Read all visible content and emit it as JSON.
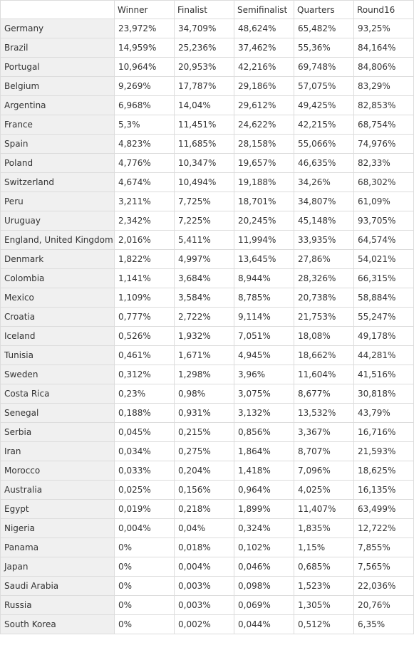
{
  "table": {
    "headers": [
      "Winner",
      "Finalist",
      "Semifinalist",
      "Quarters",
      "Round16"
    ],
    "rows": [
      {
        "team": "Germany",
        "values": [
          "23,972%",
          "34,709%",
          "48,624%",
          "65,482%",
          "93,25%"
        ]
      },
      {
        "team": "Brazil",
        "values": [
          "14,959%",
          "25,236%",
          "37,462%",
          "55,36%",
          "84,164%"
        ]
      },
      {
        "team": "Portugal",
        "values": [
          "10,964%",
          "20,953%",
          "42,216%",
          "69,748%",
          "84,806%"
        ]
      },
      {
        "team": "Belgium",
        "values": [
          "9,269%",
          "17,787%",
          "29,186%",
          "57,075%",
          "83,29%"
        ]
      },
      {
        "team": "Argentina",
        "values": [
          "6,968%",
          "14,04%",
          "29,612%",
          "49,425%",
          "82,853%"
        ]
      },
      {
        "team": "France",
        "values": [
          "5,3%",
          "11,451%",
          "24,622%",
          "42,215%",
          "68,754%"
        ]
      },
      {
        "team": "Spain",
        "values": [
          "4,823%",
          "11,685%",
          "28,158%",
          "55,066%",
          "74,976%"
        ]
      },
      {
        "team": "Poland",
        "values": [
          "4,776%",
          "10,347%",
          "19,657%",
          "46,635%",
          "82,33%"
        ]
      },
      {
        "team": "Switzerland",
        "values": [
          "4,674%",
          "10,494%",
          "19,188%",
          "34,26%",
          "68,302%"
        ]
      },
      {
        "team": "Peru",
        "values": [
          "3,211%",
          "7,725%",
          "18,701%",
          "34,807%",
          "61,09%"
        ]
      },
      {
        "team": "Uruguay",
        "values": [
          "2,342%",
          "7,225%",
          "20,245%",
          "45,148%",
          "93,705%"
        ]
      },
      {
        "team": "England, United Kingdom",
        "values": [
          "2,016%",
          "5,411%",
          "11,994%",
          "33,935%",
          "64,574%"
        ]
      },
      {
        "team": "Denmark",
        "values": [
          "1,822%",
          "4,997%",
          "13,645%",
          "27,86%",
          "54,021%"
        ]
      },
      {
        "team": "Colombia",
        "values": [
          "1,141%",
          "3,684%",
          "8,944%",
          "28,326%",
          "66,315%"
        ]
      },
      {
        "team": "Mexico",
        "values": [
          "1,109%",
          "3,584%",
          "8,785%",
          "20,738%",
          "58,884%"
        ]
      },
      {
        "team": "Croatia",
        "values": [
          "0,777%",
          "2,722%",
          "9,114%",
          "21,753%",
          "55,247%"
        ]
      },
      {
        "team": "Iceland",
        "values": [
          "0,526%",
          "1,932%",
          "7,051%",
          "18,08%",
          "49,178%"
        ]
      },
      {
        "team": "Tunisia",
        "values": [
          "0,461%",
          "1,671%",
          "4,945%",
          "18,662%",
          "44,281%"
        ]
      },
      {
        "team": "Sweden",
        "values": [
          "0,312%",
          "1,298%",
          "3,96%",
          "11,604%",
          "41,516%"
        ]
      },
      {
        "team": "Costa Rica",
        "values": [
          "0,23%",
          "0,98%",
          "3,075%",
          "8,677%",
          "30,818%"
        ]
      },
      {
        "team": "Senegal",
        "values": [
          "0,188%",
          "0,931%",
          "3,132%",
          "13,532%",
          "43,79%"
        ]
      },
      {
        "team": "Serbia",
        "values": [
          "0,045%",
          "0,215%",
          "0,856%",
          "3,367%",
          "16,716%"
        ]
      },
      {
        "team": "Iran",
        "values": [
          "0,034%",
          "0,275%",
          "1,864%",
          "8,707%",
          "21,593%"
        ]
      },
      {
        "team": "Morocco",
        "values": [
          "0,033%",
          "0,204%",
          "1,418%",
          "7,096%",
          "18,625%"
        ]
      },
      {
        "team": "Australia",
        "values": [
          "0,025%",
          "0,156%",
          "0,964%",
          "4,025%",
          "16,135%"
        ]
      },
      {
        "team": "Egypt",
        "values": [
          "0,019%",
          "0,218%",
          "1,899%",
          "11,407%",
          "63,499%"
        ]
      },
      {
        "team": "Nigeria",
        "values": [
          "0,004%",
          "0,04%",
          "0,324%",
          "1,835%",
          "12,722%"
        ]
      },
      {
        "team": "Panama",
        "values": [
          "0%",
          "0,018%",
          "0,102%",
          "1,15%",
          "7,855%"
        ]
      },
      {
        "team": "Japan",
        "values": [
          "0%",
          "0,004%",
          "0,046%",
          "0,685%",
          "7,565%"
        ]
      },
      {
        "team": "Saudi Arabia",
        "values": [
          "0%",
          "0,003%",
          "0,098%",
          "1,523%",
          "22,036%"
        ]
      },
      {
        "team": "Russia",
        "values": [
          "0%",
          "0,003%",
          "0,069%",
          "1,305%",
          "20,76%"
        ]
      },
      {
        "team": "South Korea",
        "values": [
          "0%",
          "0,002%",
          "0,044%",
          "0,512%",
          "6,35%"
        ]
      }
    ]
  }
}
